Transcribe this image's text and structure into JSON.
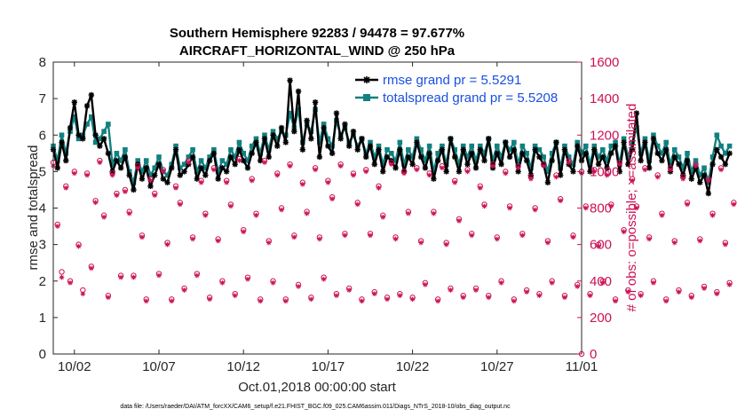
{
  "chart_data": {
    "type": "line",
    "title_line1": "Southern Hemisphere 92283 / 94478 = 97.677%",
    "title_line2": "AIRCRAFT_HORIZONTAL_WIND @ 250 hPa",
    "ylabel_left": "rmse and totalspread",
    "ylabel_right": "# of obs: o=possible; ×=assimilated",
    "xlabel": "Oct.01,2018 00:00:00 start",
    "footnote": "data file: /Users/raeder/DAI/ATM_forcXX/CAM6_setup/f.e21.FHIST_BGC.f09_025.CAM6assim.011/Diags_NTrS_2018-10/obs_diag_output.nc",
    "xlim": [
      0.75,
      31.25
    ],
    "ylim_left": [
      0,
      8
    ],
    "ylim_right": [
      0,
      1600
    ],
    "x_tick_values": [
      2,
      7,
      12,
      17,
      22,
      27,
      32
    ],
    "x_tick_labels": [
      "10/02",
      "10/07",
      "10/12",
      "10/17",
      "10/22",
      "10/27",
      "11/01"
    ],
    "y_left_ticks": [
      "0",
      "1",
      "2",
      "3",
      "4",
      "5",
      "6",
      "7",
      "8"
    ],
    "y_right_ticks": [
      "0",
      "200",
      "400",
      "600",
      "800",
      "1000",
      "1200",
      "1400",
      "1600"
    ],
    "colors": {
      "rmse": "#000000",
      "spread": "#138080",
      "obs": "#cc1155",
      "legend_text": "#1a50e0"
    },
    "series": [
      {
        "name": "rmse grand pr = 5.5291",
        "axis": "left",
        "x_start": 0.75,
        "x_step": 0.25,
        "values": [
          5.6,
          5.1,
          5.8,
          5.3,
          6.2,
          6.9,
          6.0,
          5.9,
          6.8,
          7.1,
          6.0,
          5.7,
          5.9,
          5.5,
          5.0,
          5.3,
          5.1,
          5.4,
          4.9,
          4.5,
          5.2,
          4.8,
          5.1,
          4.6,
          4.9,
          5.2,
          4.8,
          4.7,
          5.1,
          5.6,
          4.9,
          5.0,
          5.2,
          5.4,
          4.8,
          5.1,
          4.9,
          5.3,
          5.5,
          4.8,
          5.1,
          5.0,
          5.4,
          5.2,
          5.6,
          5.3,
          5.1,
          5.5,
          5.8,
          5.3,
          5.9,
          5.4,
          6.0,
          5.7,
          6.2,
          5.8,
          7.5,
          6.1,
          7.2,
          5.6,
          6.4,
          5.9,
          6.9,
          5.4,
          6.2,
          5.7,
          5.5,
          6.6,
          5.9,
          6.3,
          5.7,
          6.1,
          5.6,
          5.9,
          5.4,
          5.7,
          5.2,
          5.6,
          5.0,
          5.4,
          5.3,
          5.1,
          5.6,
          5.0,
          5.4,
          5.2,
          5.8,
          5.4,
          5.1,
          5.5,
          4.8,
          5.3,
          5.6,
          5.0,
          5.9,
          5.4,
          5.0,
          5.6,
          5.2,
          5.5,
          5.1,
          5.6,
          5.3,
          5.9,
          5.1,
          5.5,
          5.2,
          5.8,
          5.4,
          5.6,
          5.0,
          5.5,
          5.3,
          4.9,
          5.6,
          5.4,
          5.2,
          4.7,
          5.3,
          5.8,
          4.9,
          5.6,
          5.2,
          5.0,
          5.7,
          5.3,
          5.5,
          5.0,
          5.6,
          5.2,
          5.4,
          5.1,
          5.5,
          5.7,
          5.0,
          5.8,
          5.2,
          5.6,
          6.6,
          5.3,
          5.8,
          5.1,
          5.9,
          5.5,
          5.3,
          5.6,
          5.0,
          5.4,
          5.2,
          4.9,
          5.3,
          4.8,
          5.1,
          4.7,
          4.9,
          4.4,
          5.2,
          5.6,
          5.4,
          5.2,
          5.5
        ]
      },
      {
        "name": "totalspread grand pr = 5.5208",
        "axis": "left",
        "x_start": 0.75,
        "x_step": 0.25,
        "values": [
          5.7,
          5.3,
          6.0,
          5.5,
          6.1,
          6.5,
          5.9,
          6.0,
          6.3,
          6.5,
          5.8,
          5.9,
          6.1,
          6.3,
          5.2,
          5.5,
          5.3,
          5.6,
          5.0,
          4.7,
          5.3,
          5.0,
          5.3,
          4.9,
          5.1,
          5.4,
          5.0,
          4.9,
          5.2,
          5.7,
          5.1,
          5.2,
          5.4,
          5.6,
          5.0,
          5.3,
          5.1,
          5.4,
          5.6,
          5.0,
          5.3,
          5.2,
          5.6,
          5.4,
          5.8,
          5.5,
          5.3,
          5.7,
          5.9,
          5.5,
          6.0,
          5.6,
          6.1,
          5.9,
          6.1,
          6.0,
          6.6,
          6.2,
          6.7,
          5.8,
          6.3,
          6.1,
          6.7,
          5.8,
          6.3,
          5.9,
          5.7,
          6.4,
          6.0,
          6.2,
          5.8,
          6.0,
          5.7,
          5.9,
          5.5,
          5.8,
          5.4,
          5.7,
          5.2,
          5.6,
          5.5,
          5.3,
          5.8,
          5.2,
          5.6,
          5.4,
          5.9,
          5.6,
          5.3,
          5.7,
          5.0,
          5.5,
          5.7,
          5.2,
          5.9,
          5.6,
          5.2,
          5.7,
          5.4,
          5.7,
          5.3,
          5.7,
          5.5,
          5.9,
          5.3,
          5.7,
          5.4,
          5.8,
          5.6,
          5.8,
          5.2,
          5.7,
          5.5,
          5.1,
          5.7,
          5.6,
          5.4,
          5.0,
          5.5,
          5.8,
          5.1,
          5.7,
          5.4,
          5.2,
          5.8,
          5.5,
          5.7,
          5.2,
          5.7,
          5.4,
          5.6,
          5.3,
          5.7,
          5.8,
          5.2,
          5.9,
          5.4,
          5.8,
          6.2,
          5.5,
          5.9,
          5.3,
          6.0,
          5.7,
          5.5,
          5.8,
          5.2,
          5.6,
          5.4,
          5.1,
          5.5,
          5.0,
          5.3,
          4.9,
          5.1,
          4.7,
          5.4,
          6.0,
          5.7,
          5.5,
          5.7
        ]
      },
      {
        "name": "obs possible",
        "axis": "right",
        "marker": "o",
        "x_start": 0.75,
        "x_step": 0.25,
        "values": [
          1050,
          710,
          450,
          920,
          400,
          1000,
          600,
          350,
          990,
          480,
          840,
          1060,
          760,
          320,
          990,
          880,
          430,
          900,
          780,
          430,
          1030,
          650,
          300,
          960,
          880,
          440,
          1010,
          610,
          300,
          920,
          830,
          360,
          1060,
          640,
          440,
          950,
          770,
          310,
          1020,
          630,
          400,
          950,
          820,
          330,
          1070,
          680,
          420,
          960,
          770,
          300,
          1060,
          620,
          400,
          990,
          800,
          300,
          1040,
          650,
          380,
          940,
          780,
          310,
          1020,
          640,
          420,
          950,
          860,
          330,
          1040,
          660,
          360,
          990,
          830,
          300,
          1010,
          660,
          340,
          920,
          760,
          310,
          1050,
          640,
          330,
          1000,
          780,
          310,
          1020,
          620,
          390,
          990,
          780,
          300,
          1030,
          610,
          360,
          950,
          740,
          320,
          1010,
          660,
          360,
          920,
          820,
          320,
          1040,
          640,
          400,
          1000,
          810,
          300,
          1030,
          660,
          350,
          970,
          800,
          330,
          1040,
          620,
          400,
          980,
          850,
          320,
          1060,
          650,
          380,
          1000,
          810,
          330,
          1010,
          600,
          400,
          990,
          820,
          300,
          1050,
          680,
          350,
          960,
          810,
          330,
          1020,
          640,
          400,
          980,
          770,
          300,
          1020,
          620,
          350,
          970,
          830,
          320,
          1040,
          630,
          370,
          960,
          770,
          340,
          1020,
          610,
          390,
          830
        ]
      },
      {
        "name": "obs assimilated",
        "axis": "right",
        "marker": "x",
        "x_start": 0.75,
        "x_step": 0.25,
        "values": [
          1030,
          700,
          420,
          910,
          390,
          990,
          590,
          330,
          980,
          470,
          830,
          1050,
          750,
          310,
          980,
          870,
          420,
          890,
          770,
          420,
          1020,
          640,
          290,
          950,
          870,
          430,
          1000,
          600,
          290,
          910,
          820,
          350,
          1050,
          630,
          430,
          940,
          760,
          300,
          1010,
          620,
          390,
          940,
          810,
          320,
          1060,
          670,
          410,
          950,
          760,
          290,
          1050,
          610,
          390,
          980,
          790,
          290,
          1030,
          640,
          370,
          930,
          770,
          300,
          1010,
          630,
          410,
          940,
          850,
          320,
          1030,
          650,
          350,
          980,
          820,
          290,
          1000,
          650,
          330,
          910,
          750,
          300,
          1040,
          630,
          320,
          990,
          770,
          300,
          1010,
          610,
          380,
          980,
          770,
          290,
          1020,
          600,
          350,
          940,
          730,
          310,
          1000,
          650,
          350,
          910,
          810,
          310,
          1030,
          630,
          390,
          990,
          800,
          290,
          1020,
          650,
          340,
          960,
          790,
          320,
          1030,
          610,
          390,
          970,
          840,
          310,
          1050,
          640,
          370,
          990,
          800,
          320,
          1000,
          590,
          390,
          980,
          810,
          290,
          1040,
          670,
          340,
          950,
          800,
          320,
          1010,
          630,
          390,
          970,
          760,
          290,
          1010,
          610,
          340,
          960,
          820,
          310,
          1030,
          620,
          360,
          950,
          760,
          330,
          1010,
          600,
          380,
          820
        ]
      }
    ],
    "last_obs_x": 32,
    "last_obs_value": 0
  }
}
